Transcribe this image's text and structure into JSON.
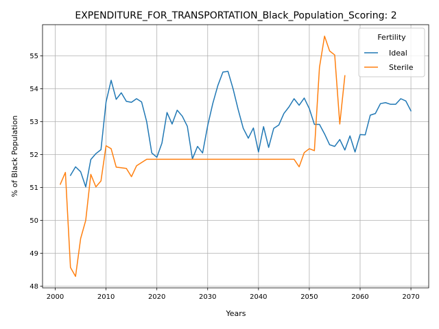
{
  "chart_data": {
    "type": "line",
    "title": "EXPENDITURE_FOR_TRANSPORTATION_Black_Population_Scoring: 2",
    "xlabel": "Years",
    "ylabel": "% of Black Population",
    "xlim": [
      1997.5,
      2073.5
    ],
    "ylim": [
      47.95,
      55.95
    ],
    "xticks": [
      2000,
      2010,
      2020,
      2030,
      2040,
      2050,
      2060,
      2070
    ],
    "yticks": [
      48,
      49,
      50,
      51,
      52,
      53,
      54,
      55
    ],
    "grid": true,
    "legend": {
      "title": "Fertility",
      "placement": "top-right"
    },
    "series": [
      {
        "name": "Ideal",
        "color": "#1f77b4",
        "x": [
          2003,
          2004,
          2005,
          2006,
          2007,
          2008,
          2009,
          2010,
          2011,
          2012,
          2013,
          2014,
          2015,
          2016,
          2017,
          2018,
          2019,
          2020,
          2021,
          2022,
          2023,
          2024,
          2025,
          2026,
          2027,
          2028,
          2029,
          2030,
          2031,
          2032,
          2033,
          2034,
          2035,
          2036,
          2037,
          2038,
          2039,
          2040,
          2041,
          2042,
          2043,
          2044,
          2045,
          2046,
          2047,
          2048,
          2049,
          2050,
          2051,
          2052,
          2053,
          2054,
          2055,
          2056,
          2057,
          2058,
          2059,
          2060,
          2061,
          2062,
          2063,
          2064,
          2065,
          2066,
          2067,
          2068,
          2069,
          2070
        ],
        "values": [
          51.37,
          51.63,
          51.48,
          51.02,
          51.85,
          52.03,
          52.15,
          53.6,
          54.26,
          53.68,
          53.88,
          53.62,
          53.59,
          53.7,
          53.6,
          53.0,
          52.05,
          51.92,
          52.35,
          53.28,
          52.93,
          53.35,
          53.17,
          52.86,
          51.87,
          52.25,
          52.05,
          52.88,
          53.55,
          54.1,
          54.51,
          54.53,
          54.0,
          53.37,
          52.8,
          52.5,
          52.81,
          52.08,
          52.85,
          52.22,
          52.8,
          52.9,
          53.25,
          53.45,
          53.7,
          53.5,
          53.72,
          53.4,
          52.92,
          52.92,
          52.63,
          52.3,
          52.25,
          52.46,
          52.14,
          52.57,
          52.08,
          52.61,
          52.6,
          53.2,
          53.25,
          53.55,
          53.58,
          53.53,
          53.53,
          53.7,
          53.63,
          53.33
        ]
      },
      {
        "name": "Sterile",
        "color": "#ff7f0e",
        "x": [
          2001,
          2002,
          2003,
          2004,
          2005,
          2006,
          2007,
          2008,
          2009,
          2010,
          2011,
          2012,
          2013,
          2014,
          2015,
          2016,
          2017,
          2018,
          2019,
          2020,
          2021,
          2022,
          2023,
          2024,
          2025,
          2026,
          2027,
          2028,
          2029,
          2030,
          2031,
          2032,
          2033,
          2034,
          2035,
          2036,
          2037,
          2038,
          2039,
          2040,
          2041,
          2042,
          2043,
          2044,
          2045,
          2046,
          2047,
          2048,
          2049,
          2050,
          2051,
          2052,
          2053,
          2054,
          2055,
          2056,
          2057
        ],
        "values": [
          51.1,
          51.46,
          48.57,
          48.3,
          49.45,
          50.0,
          51.4,
          51.02,
          51.2,
          52.27,
          52.18,
          51.62,
          51.6,
          51.58,
          51.33,
          51.66,
          51.76,
          51.86,
          51.86,
          51.86,
          51.86,
          51.86,
          51.86,
          51.86,
          51.86,
          51.86,
          51.86,
          51.86,
          51.86,
          51.86,
          51.86,
          51.86,
          51.86,
          51.86,
          51.86,
          51.86,
          51.86,
          51.86,
          51.86,
          51.86,
          51.86,
          51.86,
          51.86,
          51.86,
          51.86,
          51.86,
          51.86,
          51.63,
          52.06,
          52.18,
          52.12,
          54.65,
          55.6,
          55.15,
          55.03,
          52.93,
          54.4
        ]
      }
    ]
  }
}
